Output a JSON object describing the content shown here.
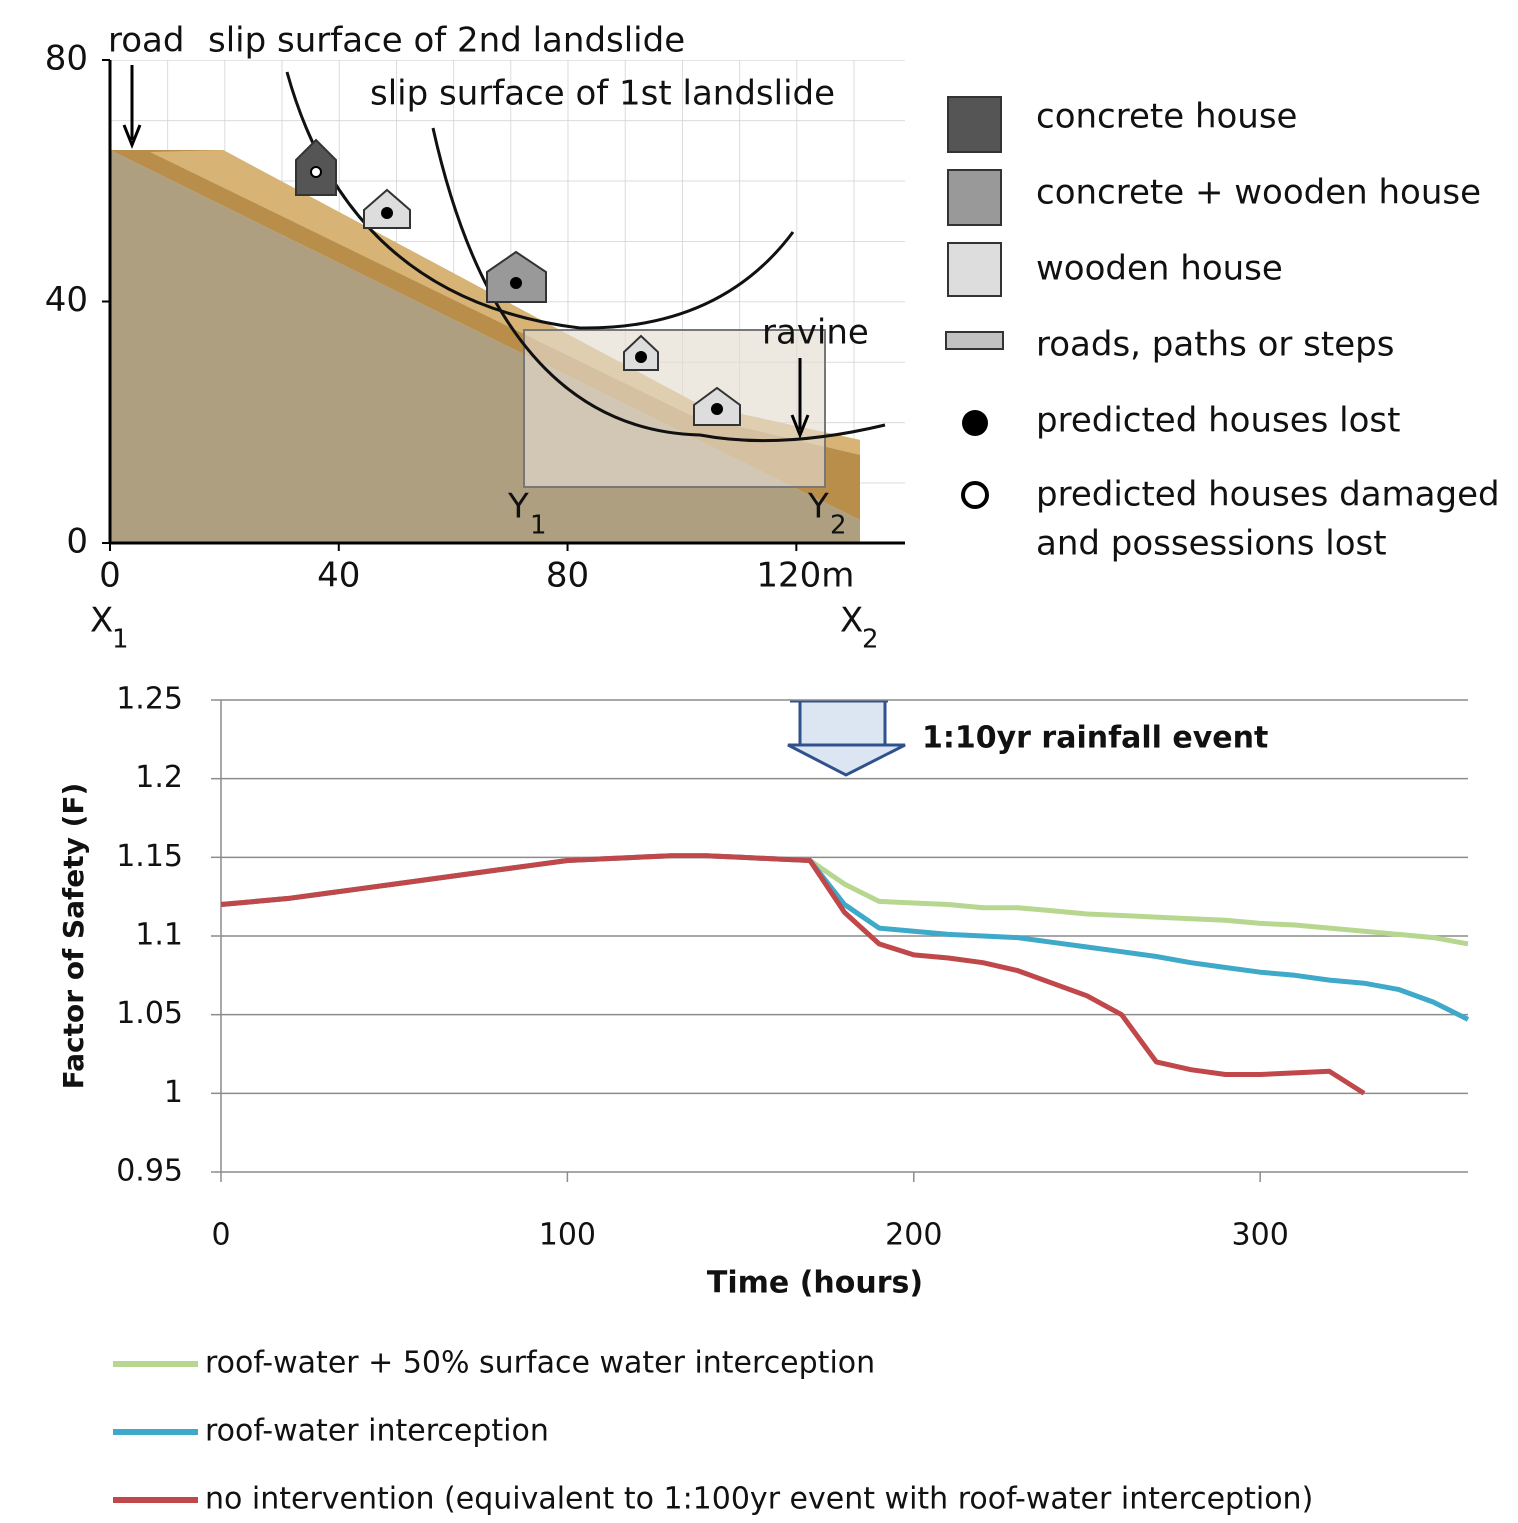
{
  "cross_section": {
    "xlim": [
      0,
      139
    ],
    "ylim": [
      0,
      80
    ],
    "xticks": [
      0,
      40,
      80,
      {
        "value": 120,
        "label": "120m"
      }
    ],
    "yticks": [
      0,
      40,
      80
    ],
    "labels": {
      "road": "road",
      "slip_2nd": "slip surface of 2nd landslide",
      "slip_1st": "slip surface of 1st landslide",
      "ravine": "ravine"
    },
    "points": [
      {
        "letter": "X",
        "sub": "1"
      },
      {
        "letter": "X",
        "sub": "2"
      },
      {
        "letter": "Y",
        "sub": "1"
      },
      {
        "letter": "Y",
        "sub": "2"
      }
    ],
    "legend": [
      "concrete house",
      "concrete + wooden house",
      "wooden house",
      "roads, paths or steps",
      "predicted houses lost",
      "predicted houses damaged",
      "and possessions lost"
    ]
  },
  "chart_data": {
    "type": "line",
    "annotation": "1:10yr rainfall event",
    "x_label": "Time (hours)",
    "y_label": "Factor of Safety (F)",
    "xlim": [
      0,
      360
    ],
    "ylim": [
      0.95,
      1.25
    ],
    "xticks": [
      0,
      100,
      200,
      300
    ],
    "yticks": [
      0.95,
      1,
      1.05,
      1.1,
      1.15,
      1.2,
      1.25
    ],
    "grid": true,
    "x": [
      0,
      10,
      20,
      30,
      40,
      50,
      60,
      70,
      80,
      90,
      100,
      110,
      120,
      130,
      140,
      150,
      160,
      170,
      180,
      190,
      200,
      210,
      220,
      230,
      240,
      250,
      260,
      270,
      280,
      290,
      300,
      310,
      320,
      330,
      340,
      350,
      360
    ],
    "series": [
      {
        "name": "roof-water + 50% surface water interception",
        "color": "#b7d68f",
        "values": [
          1.12,
          1.122,
          1.124,
          1.127,
          1.13,
          1.133,
          1.136,
          1.139,
          1.142,
          1.145,
          1.148,
          1.149,
          1.15,
          1.151,
          1.151,
          1.15,
          1.149,
          1.148,
          1.133,
          1.122,
          1.121,
          1.12,
          1.118,
          1.118,
          1.116,
          1.114,
          1.113,
          1.112,
          1.111,
          1.11,
          1.108,
          1.107,
          1.105,
          1.103,
          1.101,
          1.099,
          1.095
        ]
      },
      {
        "name": "roof-water interception",
        "color": "#3ea9c9",
        "values": [
          1.12,
          1.122,
          1.124,
          1.127,
          1.13,
          1.133,
          1.136,
          1.139,
          1.142,
          1.145,
          1.148,
          1.149,
          1.15,
          1.151,
          1.151,
          1.15,
          1.149,
          1.148,
          1.12,
          1.105,
          1.103,
          1.101,
          1.1,
          1.099,
          1.096,
          1.093,
          1.09,
          1.087,
          1.083,
          1.08,
          1.077,
          1.075,
          1.072,
          1.07,
          1.066,
          1.058,
          1.047
        ]
      },
      {
        "name": "no intervention (equivalent to 1:100yr event with roof-water interception)",
        "color": "#c0474a",
        "values": [
          1.12,
          1.122,
          1.124,
          1.127,
          1.13,
          1.133,
          1.136,
          1.139,
          1.142,
          1.145,
          1.148,
          1.149,
          1.15,
          1.151,
          1.151,
          1.15,
          1.149,
          1.148,
          1.115,
          1.095,
          1.088,
          1.086,
          1.083,
          1.078,
          1.07,
          1.062,
          1.05,
          1.02,
          1.015,
          1.012,
          1.012,
          1.013,
          1.014,
          1.0,
          null,
          null,
          null
        ]
      }
    ]
  }
}
